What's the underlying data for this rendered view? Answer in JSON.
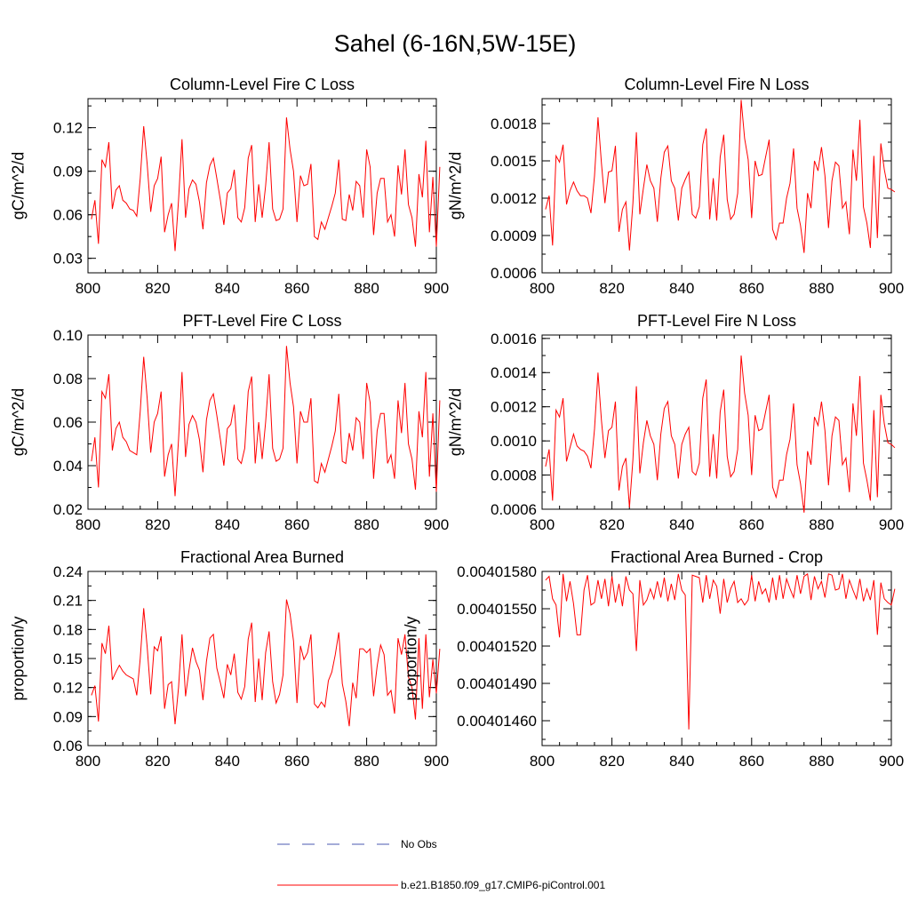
{
  "figure_title": "Sahel (6-16N,5W-15E)",
  "legend": {
    "items": [
      {
        "label": "No Obs",
        "color": "#4a5ab0",
        "dash": true
      },
      {
        "label": "b.e21.B1850.f09_g17.CMIP6-piControl.001",
        "color": "#ff0000",
        "dash": false
      }
    ]
  },
  "chart_data": [
    {
      "type": "line",
      "title": "Column-Level Fire C Loss",
      "ylabel": "gC/m^2/d",
      "xlabel": "",
      "xlim": [
        800,
        900
      ],
      "ylim": [
        0.02,
        0.14
      ],
      "xticks": [
        800,
        820,
        840,
        860,
        880,
        900
      ],
      "xtick_labels": [
        "800",
        "820",
        "840",
        "860",
        "880",
        "900"
      ],
      "yticks": [
        0.03,
        0.06,
        0.09,
        0.12
      ],
      "ytick_labels": [
        "0.03",
        "0.06",
        "0.09",
        "0.12"
      ],
      "series": [
        {
          "name": "b.e21.B1850.f09_g17.CMIP6-piControl.001",
          "color": "#ff0000",
          "x_start": 801,
          "x_step": 1,
          "values": [
            0.057,
            0.07,
            0.04,
            0.098,
            0.093,
            0.11,
            0.064,
            0.077,
            0.08,
            0.07,
            0.068,
            0.064,
            0.063,
            0.059,
            0.085,
            0.121,
            0.095,
            0.062,
            0.08,
            0.085,
            0.1,
            0.048,
            0.06,
            0.068,
            0.035,
            0.07,
            0.112,
            0.058,
            0.078,
            0.084,
            0.081,
            0.069,
            0.05,
            0.082,
            0.094,
            0.099,
            0.085,
            0.07,
            0.053,
            0.075,
            0.078,
            0.091,
            0.058,
            0.055,
            0.065,
            0.099,
            0.108,
            0.055,
            0.081,
            0.058,
            0.08,
            0.11,
            0.064,
            0.056,
            0.057,
            0.064,
            0.127,
            0.105,
            0.09,
            0.055,
            0.087,
            0.08,
            0.081,
            0.095,
            0.045,
            0.043,
            0.055,
            0.05,
            0.058,
            0.066,
            0.075,
            0.098,
            0.057,
            0.056,
            0.074,
            0.063,
            0.083,
            0.08,
            0.058,
            0.105,
            0.093,
            0.046,
            0.075,
            0.085,
            0.085,
            0.055,
            0.06,
            0.045,
            0.094,
            0.074,
            0.105,
            0.067,
            0.058,
            0.038,
            0.088,
            0.072,
            0.111,
            0.048,
            0.086,
            0.038,
            0.093
          ]
        }
      ]
    },
    {
      "type": "line",
      "title": "Column-Level Fire N Loss",
      "ylabel": "gN/m^2/d",
      "xlabel": "",
      "xlim": [
        800,
        900
      ],
      "ylim": [
        0.0006,
        0.002
      ],
      "xticks": [
        800,
        820,
        840,
        860,
        880,
        900
      ],
      "xtick_labels": [
        "800",
        "820",
        "840",
        "860",
        "880",
        "900"
      ],
      "yticks": [
        0.0006,
        0.0009,
        0.0012,
        0.0015,
        0.0018
      ],
      "ytick_labels": [
        "0.0006",
        "0.0009",
        "0.0012",
        "0.0015",
        "0.0018"
      ],
      "series": [
        {
          "name": "b.e21.B1850.f09_g17.CMIP6-piControl.001",
          "color": "#ff0000",
          "x_start": 801,
          "x_step": 1,
          "values": [
            0.00111,
            0.00122,
            0.00082,
            0.00154,
            0.00149,
            0.00163,
            0.00115,
            0.00126,
            0.00133,
            0.00126,
            0.00122,
            0.00122,
            0.0012,
            0.00108,
            0.00138,
            0.00185,
            0.00148,
            0.00116,
            0.00141,
            0.00142,
            0.00162,
            0.00093,
            0.00111,
            0.00117,
            0.00078,
            0.00116,
            0.00173,
            0.00107,
            0.00128,
            0.00147,
            0.00134,
            0.00128,
            0.00101,
            0.00136,
            0.00157,
            0.00162,
            0.00134,
            0.00128,
            0.00102,
            0.00128,
            0.00135,
            0.00141,
            0.00107,
            0.00104,
            0.00113,
            0.00163,
            0.00176,
            0.00103,
            0.00136,
            0.00102,
            0.00153,
            0.00171,
            0.00119,
            0.00103,
            0.00107,
            0.00124,
            0.00199,
            0.00168,
            0.00151,
            0.00104,
            0.0015,
            0.00138,
            0.00139,
            0.00153,
            0.00167,
            0.00095,
            0.00087,
            0.001,
            0.001,
            0.0012,
            0.00132,
            0.0016,
            0.00112,
            0.00098,
            0.00076,
            0.00124,
            0.00112,
            0.0015,
            0.00142,
            0.00161,
            0.00138,
            0.00096,
            0.00134,
            0.00149,
            0.00146,
            0.00112,
            0.00117,
            0.00091,
            0.00159,
            0.00134,
            0.00183,
            0.00113,
            0.001,
            0.0008,
            0.00154,
            0.00088,
            0.00164,
            0.00143,
            0.00128,
            0.00127,
            0.00125
          ]
        }
      ]
    },
    {
      "type": "line",
      "title": "PFT-Level Fire C Loss",
      "ylabel": "gC/m^2/d",
      "xlabel": "",
      "xlim": [
        800,
        900
      ],
      "ylim": [
        0.02,
        0.1
      ],
      "xticks": [
        800,
        820,
        840,
        860,
        880,
        900
      ],
      "xtick_labels": [
        "800",
        "820",
        "840",
        "860",
        "880",
        "900"
      ],
      "yticks": [
        0.02,
        0.04,
        0.06,
        0.08,
        0.1
      ],
      "ytick_labels": [
        "0.02",
        "0.04",
        "0.06",
        "0.08",
        "0.10"
      ],
      "series": [
        {
          "name": "b.e21.B1850.f09_g17.CMIP6-piControl.001",
          "color": "#ff0000",
          "x_start": 801,
          "x_step": 1,
          "values": [
            0.042,
            0.053,
            0.03,
            0.074,
            0.071,
            0.082,
            0.047,
            0.057,
            0.06,
            0.053,
            0.051,
            0.047,
            0.046,
            0.045,
            0.065,
            0.09,
            0.071,
            0.046,
            0.06,
            0.064,
            0.074,
            0.035,
            0.045,
            0.05,
            0.026,
            0.052,
            0.083,
            0.044,
            0.059,
            0.063,
            0.06,
            0.052,
            0.037,
            0.061,
            0.07,
            0.073,
            0.063,
            0.052,
            0.04,
            0.057,
            0.059,
            0.068,
            0.043,
            0.041,
            0.048,
            0.074,
            0.081,
            0.041,
            0.06,
            0.043,
            0.06,
            0.082,
            0.048,
            0.042,
            0.043,
            0.048,
            0.095,
            0.078,
            0.067,
            0.041,
            0.065,
            0.06,
            0.06,
            0.071,
            0.033,
            0.032,
            0.041,
            0.037,
            0.043,
            0.049,
            0.056,
            0.073,
            0.042,
            0.041,
            0.055,
            0.047,
            0.062,
            0.06,
            0.043,
            0.078,
            0.069,
            0.034,
            0.056,
            0.064,
            0.064,
            0.041,
            0.045,
            0.034,
            0.07,
            0.055,
            0.078,
            0.05,
            0.043,
            0.029,
            0.065,
            0.053,
            0.083,
            0.035,
            0.064,
            0.028,
            0.07
          ]
        }
      ]
    },
    {
      "type": "line",
      "title": "PFT-Level Fire N Loss",
      "ylabel": "gN/m^2/d",
      "xlabel": "",
      "xlim": [
        800,
        900
      ],
      "ylim": [
        0.0006,
        0.00162
      ],
      "xticks": [
        800,
        820,
        840,
        860,
        880,
        900
      ],
      "xtick_labels": [
        "800",
        "820",
        "840",
        "860",
        "880",
        "900"
      ],
      "yticks": [
        0.0006,
        0.0008,
        0.001,
        0.0012,
        0.0014,
        0.0016
      ],
      "ytick_labels": [
        "0.0006",
        "0.0008",
        "0.0010",
        "0.0012",
        "0.0014",
        "0.0016"
      ],
      "series": [
        {
          "name": "b.e21.B1850.f09_g17.CMIP6-piControl.001",
          "color": "#ff0000",
          "x_start": 801,
          "x_step": 1,
          "values": [
            0.00085,
            0.00095,
            0.00065,
            0.00118,
            0.00114,
            0.00125,
            0.00088,
            0.00096,
            0.00104,
            0.00097,
            0.00095,
            0.00094,
            0.00091,
            0.00084,
            0.00107,
            0.0014,
            0.00112,
            0.0009,
            0.00106,
            0.00108,
            0.00123,
            0.00071,
            0.00085,
            0.0009,
            0.00061,
            0.00089,
            0.00132,
            0.00081,
            0.00099,
            0.00112,
            0.00103,
            0.00098,
            0.00077,
            0.00104,
            0.00119,
            0.00123,
            0.00103,
            0.00098,
            0.00078,
            0.00098,
            0.00104,
            0.00108,
            0.00082,
            0.0008,
            0.00087,
            0.00125,
            0.00136,
            0.00079,
            0.00104,
            0.00078,
            0.00117,
            0.0013,
            0.00091,
            0.00079,
            0.00082,
            0.00095,
            0.0015,
            0.00128,
            0.00115,
            0.0008,
            0.00115,
            0.00106,
            0.00107,
            0.00117,
            0.00127,
            0.00073,
            0.00067,
            0.00077,
            0.00077,
            0.00092,
            0.00101,
            0.00122,
            0.00086,
            0.00075,
            0.00058,
            0.00094,
            0.00086,
            0.00114,
            0.00109,
            0.00123,
            0.00106,
            0.00074,
            0.00103,
            0.00114,
            0.00112,
            0.00086,
            0.0009,
            0.0007,
            0.00122,
            0.00103,
            0.00138,
            0.00087,
            0.00077,
            0.00065,
            0.00118,
            0.00067,
            0.00127,
            0.0011,
            0.00099,
            0.00098,
            0.00096
          ]
        }
      ]
    },
    {
      "type": "line",
      "title": "Fractional Area Burned",
      "ylabel": "proportion/y",
      "xlabel": "",
      "xlim": [
        800,
        900
      ],
      "ylim": [
        0.06,
        0.24
      ],
      "xticks": [
        800,
        820,
        840,
        860,
        880,
        900
      ],
      "xtick_labels": [
        "800",
        "820",
        "840",
        "860",
        "880",
        "900"
      ],
      "yticks": [
        0.06,
        0.09,
        0.12,
        0.15,
        0.18,
        0.21,
        0.24
      ],
      "ytick_labels": [
        "0.06",
        "0.09",
        "0.12",
        "0.15",
        "0.18",
        "0.21",
        "0.24"
      ],
      "series": [
        {
          "name": "b.e21.B1850.f09_g17.CMIP6-piControl.001",
          "color": "#ff0000",
          "x_start": 801,
          "x_step": 1,
          "values": [
            0.112,
            0.122,
            0.085,
            0.166,
            0.155,
            0.184,
            0.128,
            0.136,
            0.143,
            0.137,
            0.133,
            0.131,
            0.129,
            0.112,
            0.15,
            0.202,
            0.162,
            0.113,
            0.162,
            0.158,
            0.173,
            0.098,
            0.123,
            0.126,
            0.082,
            0.12,
            0.175,
            0.111,
            0.138,
            0.161,
            0.147,
            0.138,
            0.107,
            0.147,
            0.171,
            0.175,
            0.14,
            0.125,
            0.109,
            0.144,
            0.133,
            0.155,
            0.115,
            0.108,
            0.121,
            0.17,
            0.187,
            0.105,
            0.15,
            0.107,
            0.156,
            0.178,
            0.126,
            0.104,
            0.113,
            0.133,
            0.211,
            0.196,
            0.168,
            0.104,
            0.163,
            0.149,
            0.156,
            0.175,
            0.103,
            0.099,
            0.105,
            0.1,
            0.127,
            0.136,
            0.154,
            0.177,
            0.124,
            0.106,
            0.08,
            0.125,
            0.109,
            0.16,
            0.16,
            0.156,
            0.16,
            0.111,
            0.142,
            0.164,
            0.154,
            0.112,
            0.117,
            0.093,
            0.171,
            0.154,
            0.175,
            0.131,
            0.12,
            0.087,
            0.171,
            0.098,
            0.175,
            0.11,
            0.149,
            0.114,
            0.16
          ]
        }
      ]
    },
    {
      "type": "line",
      "title": "Fractional Area Burned - Crop",
      "ylabel": "proportion/y",
      "xlabel": "",
      "xlim": [
        800,
        900
      ],
      "ylim": [
        0.0040144,
        0.0040158
      ],
      "xticks": [
        800,
        820,
        840,
        860,
        880,
        900
      ],
      "xtick_labels": [
        "800",
        "820",
        "840",
        "860",
        "880",
        "900"
      ],
      "yticks": [
        0.0040146,
        0.0040149,
        0.0040152,
        0.0040155,
        0.0040158
      ],
      "ytick_labels": [
        "0.00401460",
        "0.00401490",
        "0.00401520",
        "0.00401550",
        "0.00401580"
      ],
      "series": [
        {
          "name": "b.e21.B1850.f09_g17.CMIP6-piControl.001",
          "color": "#ff0000",
          "x_start": 801,
          "x_step": 1,
          "values": [
            0.00401573,
            0.00401576,
            0.00401558,
            0.00401553,
            0.00401527,
            0.00401578,
            0.00401556,
            0.00401572,
            0.00401554,
            0.00401529,
            0.00401529,
            0.00401565,
            0.00401577,
            0.00401553,
            0.00401555,
            0.00401573,
            0.00401558,
            0.00401574,
            0.00401552,
            0.00401576,
            0.00401555,
            0.0040157,
            0.00401552,
            0.00401576,
            0.00401565,
            0.00401562,
            0.00401516,
            0.00401573,
            0.00401553,
            0.00401557,
            0.00401566,
            0.00401558,
            0.00401572,
            0.00401559,
            0.00401575,
            0.00401556,
            0.0040157,
            0.00401557,
            0.00401578,
            0.00401565,
            0.00401561,
            0.00401453,
            0.00401577,
            0.00401576,
            0.00401575,
            0.00401555,
            0.00401577,
            0.00401558,
            0.00401573,
            0.00401568,
            0.00401546,
            0.00401574,
            0.00401555,
            0.00401566,
            0.00401572,
            0.00401555,
            0.00401558,
            0.00401553,
            0.00401557,
            0.00401577,
            0.00401556,
            0.00401572,
            0.00401562,
            0.00401566,
            0.00401555,
            0.00401575,
            0.00401557,
            0.00401577,
            0.00401558,
            0.00401574,
            0.00401566,
            0.00401559,
            0.00401577,
            0.00401562,
            0.00401576,
            0.00401578,
            0.00401557,
            0.00401576,
            0.00401566,
            0.00401572,
            0.00401559,
            0.00401578,
            0.00401577,
            0.00401565,
            0.00401566,
            0.00401578,
            0.00401558,
            0.00401573,
            0.00401565,
            0.00401558,
            0.00401574,
            0.00401556,
            0.00401566,
            0.00401557,
            0.00401573,
            0.00401529,
            0.00401571,
            0.00401558,
            0.00401555,
            0.00401553,
            0.00401566
          ]
        }
      ]
    }
  ]
}
